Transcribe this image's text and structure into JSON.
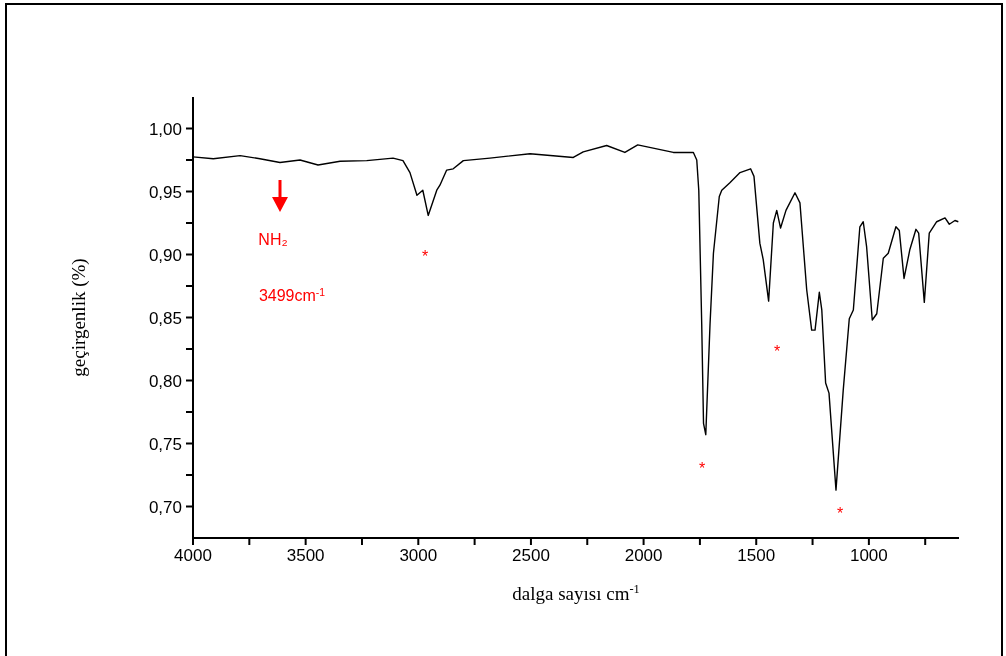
{
  "chart_data": {
    "type": "line",
    "xlabel": "dalga sayısı cm$^{-1}$",
    "ylabel": "geçirgenlik (%)",
    "x": [
      4000,
      3910,
      3791,
      3703,
      3614,
      3525,
      3445,
      3347,
      3229,
      3112,
      3068,
      3037,
      3006,
      2980,
      2956,
      2918,
      2904,
      2874,
      2845,
      2800,
      2682,
      2504,
      2312,
      2268,
      2164,
      2083,
      2026,
      1868,
      1779,
      1764,
      1755,
      1742,
      1734,
      1724,
      1705,
      1690,
      1664,
      1653,
      1617,
      1572,
      1525,
      1510,
      1484,
      1469,
      1445,
      1424,
      1409,
      1392,
      1368,
      1328,
      1306,
      1276,
      1254,
      1239,
      1220,
      1209,
      1192,
      1177,
      1146,
      1114,
      1087,
      1069,
      1040,
      1025,
      1010,
      985,
      965,
      936,
      914,
      880,
      865,
      844,
      818,
      791,
      779,
      754,
      732,
      699,
      662,
      643,
      618,
      603
    ],
    "series": [
      {
        "color": "#000000",
        "values": [
          0.9775,
          0.976,
          0.9785,
          0.976,
          0.973,
          0.975,
          0.971,
          0.974,
          0.9745,
          0.9765,
          0.9745,
          0.965,
          0.947,
          0.951,
          0.931,
          0.951,
          0.955,
          0.967,
          0.968,
          0.9745,
          0.9765,
          0.98,
          0.977,
          0.9815,
          0.9865,
          0.981,
          0.987,
          0.981,
          0.981,
          0.975,
          0.951,
          0.845,
          0.766,
          0.757,
          0.845,
          0.901,
          0.946,
          0.951,
          0.957,
          0.965,
          0.968,
          0.962,
          0.909,
          0.896,
          0.863,
          0.925,
          0.935,
          0.921,
          0.935,
          0.949,
          0.941,
          0.872,
          0.84,
          0.84,
          0.87,
          0.856,
          0.798,
          0.79,
          0.713,
          0.792,
          0.849,
          0.856,
          0.922,
          0.926,
          0.906,
          0.848,
          0.853,
          0.897,
          0.901,
          0.922,
          0.919,
          0.881,
          0.904,
          0.92,
          0.917,
          0.862,
          0.917,
          0.926,
          0.929,
          0.924,
          0.927,
          0.926
        ]
      }
    ],
    "xlim": [
      4000,
      600
    ],
    "xticks": [
      4000,
      {
        "value": 3750,
        "label": null
      },
      3500,
      {
        "value": 3250,
        "label": null
      },
      3000,
      {
        "value": 2750,
        "label": null
      },
      2500,
      {
        "value": 2250,
        "label": null
      },
      2000,
      {
        "value": 1750,
        "label": null
      },
      1500,
      {
        "value": 1250,
        "label": null
      },
      1000,
      {
        "value": 750,
        "label": null
      }
    ],
    "ylim": [
      0.675,
      1.025
    ],
    "yticks": [
      {
        "value": 0.7,
        "label": "0,70"
      },
      {
        "value": 0.725,
        "label": null
      },
      {
        "value": 0.75,
        "label": "0,75"
      },
      {
        "value": 0.775,
        "label": null
      },
      {
        "value": 0.8,
        "label": "0,80"
      },
      {
        "value": 0.825,
        "label": null
      },
      {
        "value": 0.85,
        "label": "0,85"
      },
      {
        "value": 0.875,
        "label": null
      },
      {
        "value": 0.9,
        "label": "0,90"
      },
      {
        "value": 0.925,
        "label": null
      },
      {
        "value": 0.95,
        "label": "0,95"
      },
      {
        "value": 0.975,
        "label": null
      },
      {
        "value": 1.0,
        "label": "1,00"
      }
    ],
    "annotations": [
      "NH₂",
      "3499cm$^{-1}$",
      "*",
      "*",
      "*",
      "*"
    ],
    "grid": false,
    "legend": false,
    "marker": "none",
    "line_style": "solid"
  }
}
